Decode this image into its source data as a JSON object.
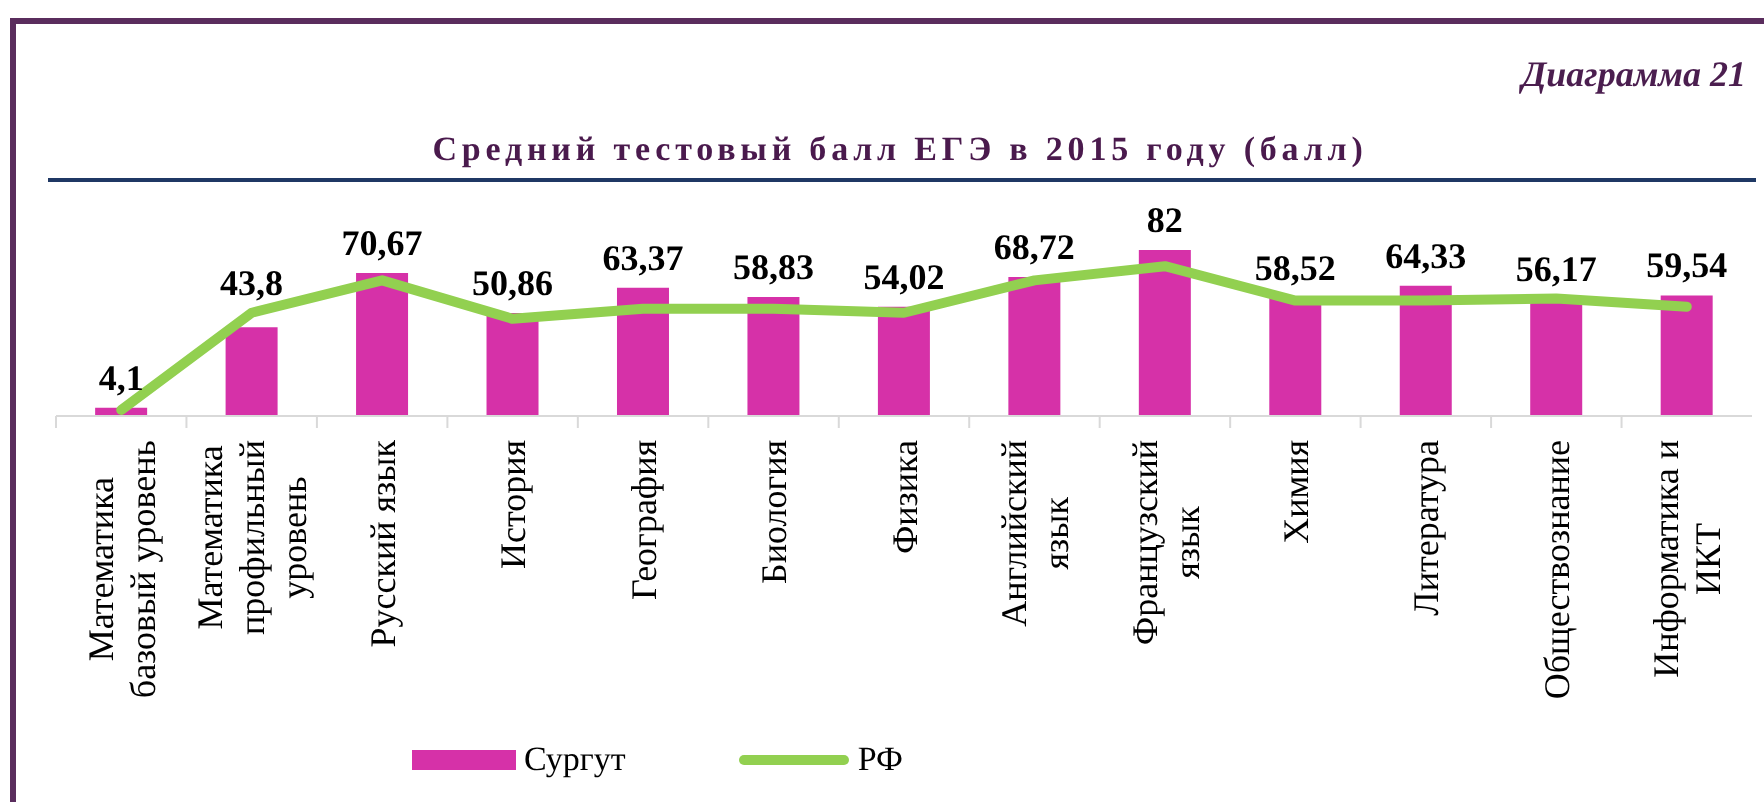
{
  "chart_data": {
    "type": "bar",
    "title": "Средний тестовый балл ЕГЭ в 2015 году (балл)",
    "annotations": [
      "Диаграмма 21"
    ],
    "categories": [
      "Математика базовый уровень",
      "Математика профильный уровень",
      "Русский язык",
      "История",
      "География",
      "Биология",
      "Физика",
      "Английский язык",
      "Французский язык",
      "Химия",
      "Литература",
      "Обществознание",
      "Информатика и ИКТ"
    ],
    "series": [
      {
        "name": "Сургут",
        "color": "#d631a8",
        "values": [
          4.1,
          43.8,
          70.67,
          50.86,
          63.37,
          58.83,
          54.02,
          68.72,
          82,
          58.52,
          64.33,
          56.17,
          59.54
        ],
        "value_labels": [
          "4,1",
          "43,8",
          "70,67",
          "50,86",
          "63,37",
          "58,83",
          "54,02",
          "68,72",
          "82",
          "58,52",
          "64,33",
          "56,17",
          "59,54"
        ]
      },
      {
        "name": "РФ",
        "type": "line",
        "color": "#92d050",
        "values": [
          3,
          51,
          67,
          48,
          53,
          53,
          51,
          67,
          74,
          57,
          57,
          58,
          54
        ]
      }
    ],
    "legend": "bottom"
  }
}
